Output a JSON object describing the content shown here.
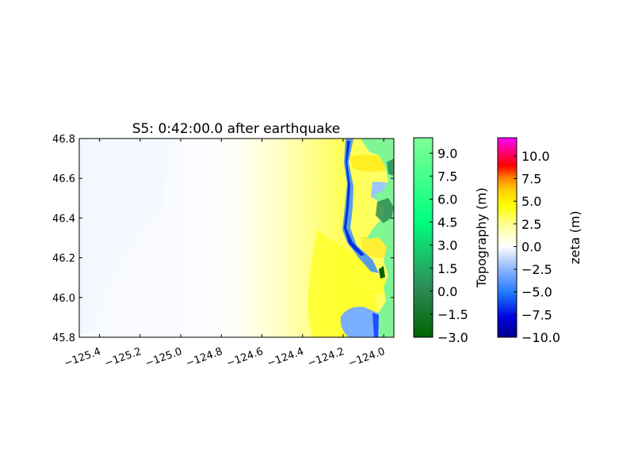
{
  "chart_data": {
    "type": "heatmap",
    "title": "S5: 0:42:00.0 after earthquake",
    "xlabel": "",
    "ylabel": "",
    "xlim": [
      -125.5,
      -123.95
    ],
    "ylim": [
      45.8,
      46.8
    ],
    "x_ticks": [
      -125.4,
      -125.2,
      -125.0,
      -124.8,
      -124.6,
      -124.4,
      -124.2,
      -124.0
    ],
    "x_tick_labels": [
      "−125.4",
      "−125.2",
      "−125.0",
      "−124.8",
      "−124.6",
      "−124.4",
      "−124.2",
      "−124.0"
    ],
    "y_ticks": [
      45.8,
      46.0,
      46.2,
      46.4,
      46.6,
      46.8
    ],
    "y_tick_labels": [
      "45.8",
      "46.0",
      "46.2",
      "46.4",
      "46.6",
      "46.8"
    ],
    "colorbars": [
      {
        "label": "Topography (m)",
        "range": [
          -3.0,
          10.0
        ],
        "ticks": [
          -3.0,
          -1.5,
          0.0,
          1.5,
          3.0,
          4.5,
          6.0,
          7.5,
          9.0
        ],
        "tick_labels": [
          "−3.0",
          "−1.5",
          "0.0",
          "1.5",
          "3.0",
          "4.5",
          "6.0",
          "7.5",
          "9.0"
        ],
        "colors": [
          "#006400",
          "#2e8b57",
          "#00ff7f",
          "#7fff96"
        ]
      },
      {
        "label": "zeta (m)",
        "range": [
          -10.0,
          12.0
        ],
        "ticks": [
          -10.0,
          -7.5,
          -5.0,
          -2.5,
          0.0,
          2.5,
          5.0,
          7.5,
          10.0
        ],
        "tick_labels": [
          "−10.0",
          "−7.5",
          "−5.0",
          "−2.5",
          "0.0",
          "2.5",
          "5.0",
          "7.5",
          "10.0"
        ],
        "colors": [
          "#0000cd",
          "#1e78ff",
          "#aac8ff",
          "#ffffff",
          "#ffff7f",
          "#ffff00",
          "#ff8c00",
          "#ff0000",
          "#ff00ff"
        ]
      }
    ]
  }
}
